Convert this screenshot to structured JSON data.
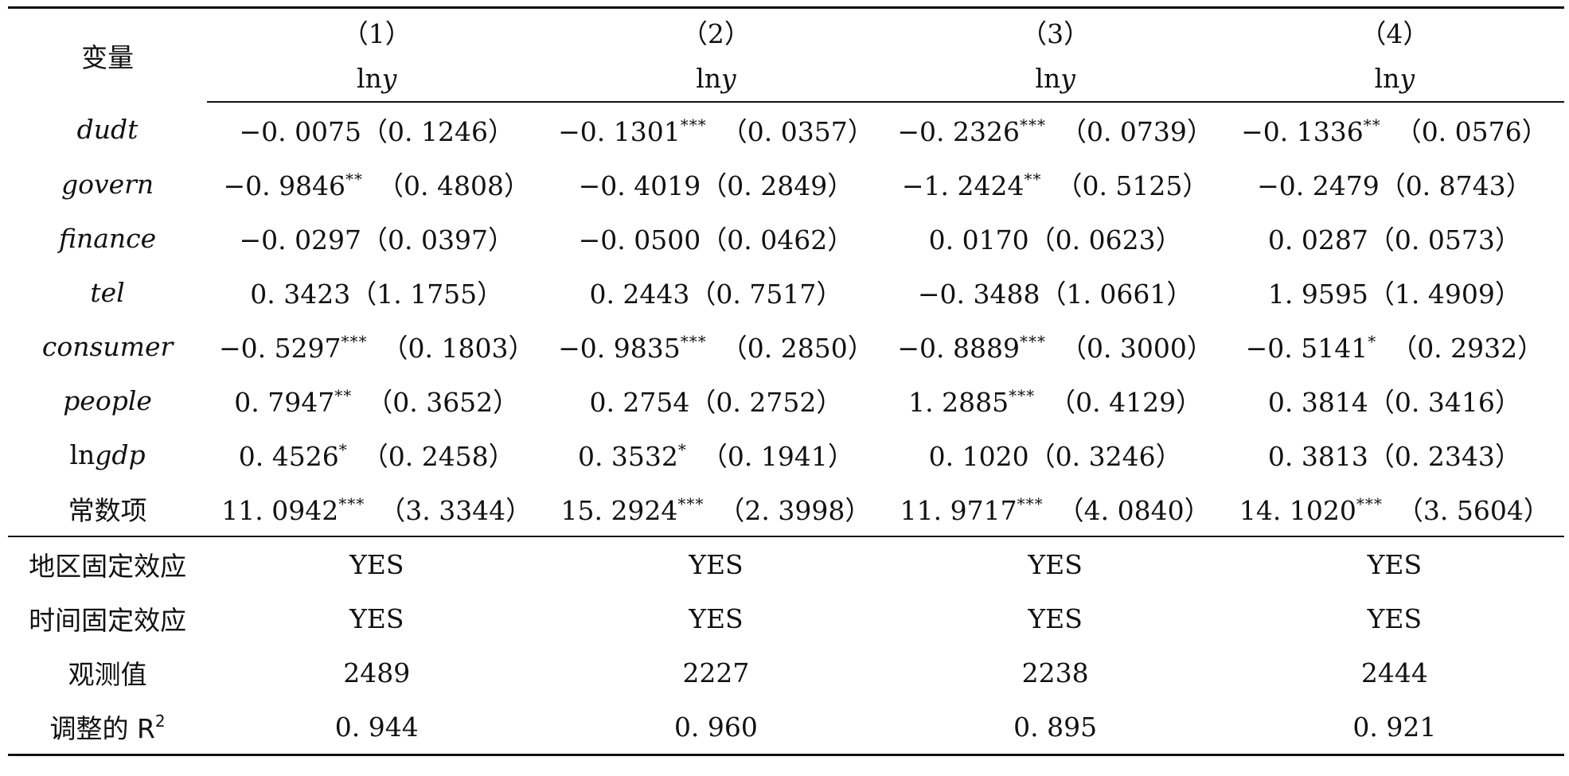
{
  "table": {
    "header": {
      "variable_label": "变量",
      "columns": [
        {
          "number": "（1）",
          "dep": "lny"
        },
        {
          "number": "（2）",
          "dep": "lny"
        },
        {
          "number": "（3）",
          "dep": "lny"
        },
        {
          "number": "（4）",
          "dep": "lny"
        }
      ]
    },
    "rows": [
      {
        "variable": "dudt",
        "italic": true,
        "cells": [
          {
            "coef": "−0. 0075",
            "stars": "",
            "se": "（0. 1246）"
          },
          {
            "coef": "−0. 1301",
            "stars": "***",
            "se": "（0. 0357）"
          },
          {
            "coef": "−0. 2326",
            "stars": "***",
            "se": "（0. 0739）"
          },
          {
            "coef": "−0. 1336",
            "stars": "**",
            "se": "（0. 0576）"
          }
        ]
      },
      {
        "variable": "govern",
        "italic": true,
        "cells": [
          {
            "coef": "−0. 9846",
            "stars": "**",
            "se": "（0. 4808）"
          },
          {
            "coef": "−0. 4019",
            "stars": "",
            "se": "（0. 2849）"
          },
          {
            "coef": "−1. 2424",
            "stars": "**",
            "se": "（0. 5125）"
          },
          {
            "coef": "−0. 2479",
            "stars": "",
            "se": "（0. 8743）"
          }
        ]
      },
      {
        "variable": "finance",
        "italic": true,
        "cells": [
          {
            "coef": "−0. 0297",
            "stars": "",
            "se": "（0. 0397）"
          },
          {
            "coef": "−0. 0500",
            "stars": "",
            "se": "（0. 0462）"
          },
          {
            "coef": "0. 0170",
            "stars": "",
            "se": "（0. 0623）"
          },
          {
            "coef": "0. 0287",
            "stars": "",
            "se": "（0. 0573）"
          }
        ]
      },
      {
        "variable": "tel",
        "italic": true,
        "cells": [
          {
            "coef": "0. 3423",
            "stars": "",
            "se": "（1. 1755）"
          },
          {
            "coef": "0. 2443",
            "stars": "",
            "se": "（0. 7517）"
          },
          {
            "coef": "−0. 3488",
            "stars": "",
            "se": "（1. 0661）"
          },
          {
            "coef": "1. 9595",
            "stars": "",
            "se": "（1. 4909）"
          }
        ]
      },
      {
        "variable": "consumer",
        "italic": true,
        "cells": [
          {
            "coef": "−0. 5297",
            "stars": "***",
            "se": "（0. 1803）"
          },
          {
            "coef": "−0. 9835",
            "stars": "***",
            "se": "（0. 2850）"
          },
          {
            "coef": "−0. 8889",
            "stars": "***",
            "se": "（0. 3000）"
          },
          {
            "coef": "−0. 5141",
            "stars": "*",
            "se": "（0. 2932）"
          }
        ]
      },
      {
        "variable": "people",
        "italic": true,
        "cells": [
          {
            "coef": "0. 7947",
            "stars": "**",
            "se": "（0. 3652）"
          },
          {
            "coef": "0. 2754",
            "stars": "",
            "se": "（0. 2752）"
          },
          {
            "coef": "1. 2885",
            "stars": "***",
            "se": "（0. 4129）"
          },
          {
            "coef": "0. 3814",
            "stars": "",
            "se": "（0. 3416）"
          }
        ]
      },
      {
        "variable_prefix": "ln",
        "variable": "gdp",
        "italic": true,
        "cells": [
          {
            "coef": "0. 4526",
            "stars": "*",
            "se": "（0. 2458）"
          },
          {
            "coef": "0. 3532",
            "stars": "*",
            "se": "（0. 1941）"
          },
          {
            "coef": "0. 1020",
            "stars": "",
            "se": "（0. 3246）"
          },
          {
            "coef": "0. 3813",
            "stars": "",
            "se": "（0. 2343）"
          }
        ]
      },
      {
        "variable": "常数项",
        "italic": false,
        "cells": [
          {
            "coef": "11. 0942",
            "stars": "***",
            "se": "（3. 3344）"
          },
          {
            "coef": "15. 2924",
            "stars": "***",
            "se": "（2. 3998）"
          },
          {
            "coef": "11. 9717",
            "stars": "***",
            "se": "（4. 0840）"
          },
          {
            "coef": "14. 1020",
            "stars": "***",
            "se": "（3. 5604）"
          }
        ]
      }
    ],
    "footer": [
      {
        "label": "地区固定效应",
        "values": [
          "YES",
          "YES",
          "YES",
          "YES"
        ]
      },
      {
        "label": "时间固定效应",
        "values": [
          "YES",
          "YES",
          "YES",
          "YES"
        ]
      },
      {
        "label": "观测值",
        "values": [
          "2489",
          "2227",
          "2238",
          "2444"
        ]
      },
      {
        "label": "调整的 R",
        "label_sup": "2",
        "values": [
          "0. 944",
          "0. 960",
          "0. 895",
          "0. 921"
        ]
      }
    ]
  }
}
